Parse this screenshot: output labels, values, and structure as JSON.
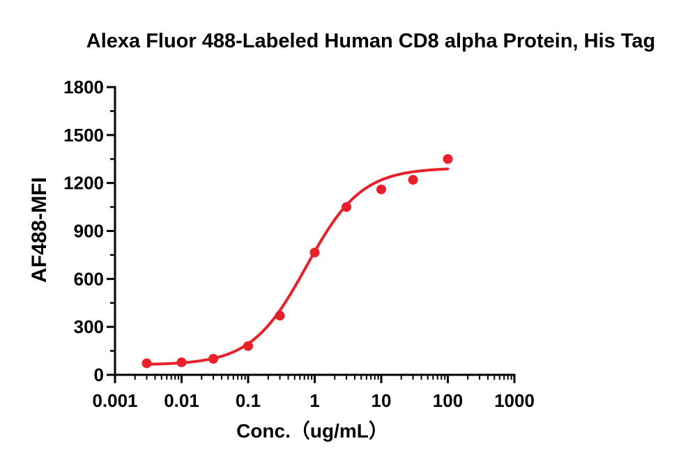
{
  "chart_data": {
    "type": "scatter",
    "title": "Alexa Fluor 488-Labeled Human CD8 alpha Protein, His Tag",
    "xlabel": "Conc.（ug/mL）",
    "ylabel": "AF488-MFI",
    "xscale": "log",
    "xlim": [
      0.001,
      1000
    ],
    "ylim": [
      0,
      1800
    ],
    "x_ticks": [
      "0.001",
      "0.01",
      "0.1",
      "1",
      "10",
      "100",
      "1000"
    ],
    "y_ticks": [
      "0",
      "300",
      "600",
      "900",
      "1200",
      "1500",
      "1800"
    ],
    "grid": false,
    "legend": "none",
    "series": [
      {
        "color": "#e8202a",
        "points": [
          {
            "x": 0.003,
            "y": 72
          },
          {
            "x": 0.01,
            "y": 78
          },
          {
            "x": 0.03,
            "y": 100
          },
          {
            "x": 0.1,
            "y": 180
          },
          {
            "x": 0.3,
            "y": 370
          },
          {
            "x": 1,
            "y": 765
          },
          {
            "x": 3,
            "y": 1050
          },
          {
            "x": 10,
            "y": 1160
          },
          {
            "x": 30,
            "y": 1220
          },
          {
            "x": 100,
            "y": 1350
          }
        ],
        "fit": {
          "type": "4PL",
          "bottom": 62,
          "top": 1295,
          "ec50": 0.75,
          "hill": 1.05,
          "x_range": [
            0.003,
            100
          ]
        }
      }
    ]
  }
}
